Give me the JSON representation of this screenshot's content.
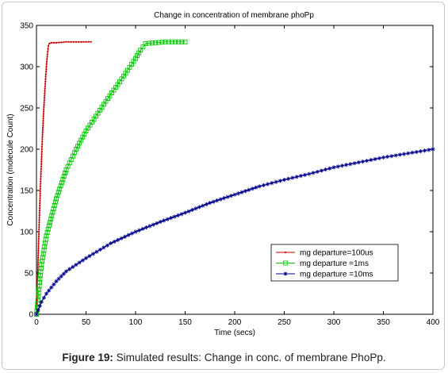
{
  "caption": {
    "label": "Figure 19:",
    "text": " Simulated results: Change in conc. of membrane PhoPp."
  },
  "chart_data": {
    "type": "line",
    "title": "Change in concentration of membrane phoPp",
    "xlabel": "Time (secs)",
    "ylabel": "Concentration (molecule Count)",
    "xlim": [
      0,
      400
    ],
    "ylim": [
      0,
      350
    ],
    "xticks": [
      0,
      50,
      100,
      150,
      200,
      250,
      300,
      350,
      400
    ],
    "yticks": [
      0,
      50,
      100,
      150,
      200,
      250,
      300,
      350
    ],
    "grid": false,
    "legend_position": "lower-right",
    "series": [
      {
        "name": "mg departure=100us",
        "color": "#cc0000",
        "marker": "dot",
        "x": [
          0,
          1,
          2,
          3,
          4,
          5,
          6,
          7,
          8,
          9,
          10,
          11,
          12,
          13,
          15,
          20,
          30,
          40,
          50,
          55
        ],
        "y": [
          0,
          40,
          80,
          120,
          155,
          185,
          215,
          240,
          262,
          282,
          300,
          315,
          325,
          328,
          329,
          329,
          330,
          330,
          330,
          330
        ]
      },
      {
        "name": "mg departure =1ms",
        "color": "#00cc00",
        "marker": "square",
        "x": [
          0,
          5,
          10,
          20,
          30,
          40,
          50,
          60,
          70,
          80,
          90,
          100,
          105,
          110,
          120,
          130,
          140,
          150
        ],
        "y": [
          0,
          60,
          95,
          140,
          175,
          200,
          222,
          240,
          258,
          275,
          292,
          310,
          320,
          328,
          329,
          330,
          330,
          330
        ]
      },
      {
        "name": "mg departure =10ms",
        "color": "#00008b",
        "marker": "star",
        "x": [
          0,
          5,
          10,
          20,
          30,
          40,
          50,
          75,
          100,
          125,
          150,
          175,
          200,
          225,
          250,
          275,
          300,
          325,
          350,
          375,
          400
        ],
        "y": [
          0,
          15,
          25,
          40,
          52,
          60,
          68,
          86,
          100,
          112,
          123,
          135,
          145,
          155,
          163,
          170,
          178,
          184,
          190,
          195,
          200
        ]
      }
    ]
  }
}
